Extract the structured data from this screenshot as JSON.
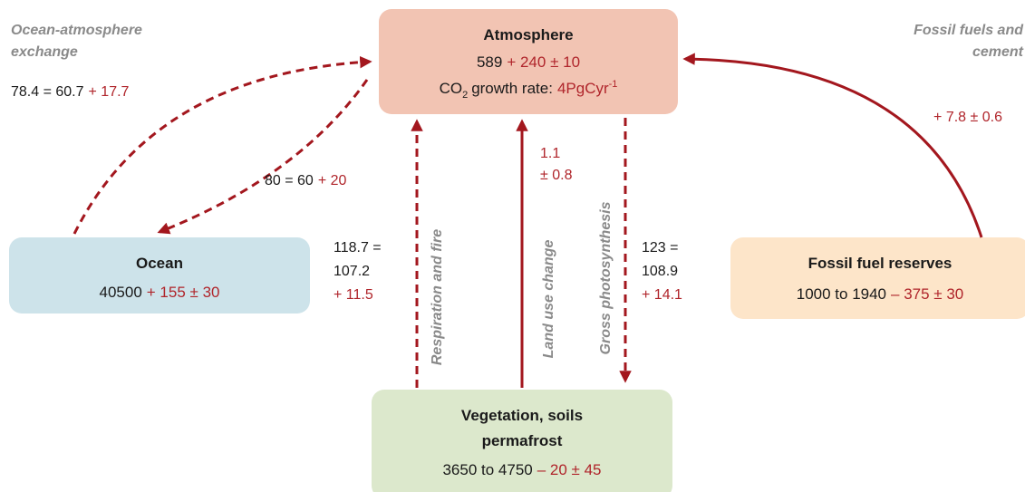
{
  "nodes": [
    {
      "title": "Atmosphere",
      "stock": "589",
      "change": "+ 240 ± 10",
      "growth": {
        "label": "CO",
        "subscript": "2",
        "text": "growth rate:",
        "value": "4PgCyr",
        "superscript": "-1"
      }
    },
    {
      "title": "Ocean",
      "stock": "40500",
      "change": "+ 155 ± 30"
    },
    {
      "title": "Fossil fuel reserves",
      "stock": "1000 to 1940",
      "change": "– 375 ± 30"
    },
    {
      "title_lines": [
        "Vegetation, soils",
        "permafrost"
      ],
      "stock": "3650 to 4750",
      "change": "– 20 ± 45"
    }
  ],
  "flows": [
    {
      "label_lines": [
        "Ocean-atmosphere",
        "exchange"
      ],
      "total": "78.4 = 60.7",
      "change": "+ 17.7"
    },
    {
      "total": "80 = 60",
      "change": "+ 20"
    },
    {
      "label": "Respiration and fire",
      "total_lines": [
        "118.7 =",
        "107.2"
      ],
      "change": "+ 11.5"
    },
    {
      "label": "Land use change",
      "change_lines": [
        "1.1",
        "± 0.8"
      ]
    },
    {
      "label": "Gross photosynthesis",
      "total_lines": [
        "123 =",
        "108.9"
      ],
      "change": "+ 14.1"
    },
    {
      "label_lines": [
        "Fossil fuels and",
        "cement"
      ],
      "change": "+ 7.8 ± 0.6"
    }
  ]
}
